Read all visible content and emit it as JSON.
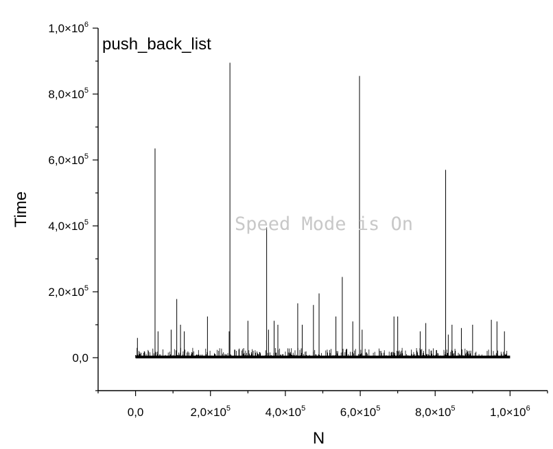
{
  "chart_data": {
    "type": "line",
    "legend": "push_back_list",
    "legend_position": "top-left",
    "xlabel": "N",
    "ylabel": "Time",
    "xlim": [
      -100000,
      1100000
    ],
    "ylim": [
      -100000,
      1000000
    ],
    "grid": false,
    "x_ticks": [
      {
        "value": 0,
        "mant": "0,0",
        "exp": ""
      },
      {
        "value": 200000,
        "mant": "2,0×10",
        "exp": "5"
      },
      {
        "value": 400000,
        "mant": "4,0×10",
        "exp": "5"
      },
      {
        "value": 600000,
        "mant": "6,0×10",
        "exp": "5"
      },
      {
        "value": 800000,
        "mant": "8,0×10",
        "exp": "5"
      },
      {
        "value": 1000000,
        "mant": "1,0×10",
        "exp": "6"
      }
    ],
    "y_ticks": [
      {
        "value": 0,
        "mant": "0,0",
        "exp": ""
      },
      {
        "value": 200000,
        "mant": "2,0×10",
        "exp": "5"
      },
      {
        "value": 400000,
        "mant": "4,0×10",
        "exp": "5"
      },
      {
        "value": 600000,
        "mant": "6,0×10",
        "exp": "5"
      },
      {
        "value": 800000,
        "mant": "8,0×10",
        "exp": "5"
      },
      {
        "value": 1000000,
        "mant": "1,0×10",
        "exp": "6"
      }
    ],
    "baseline": {
      "x_start": 0,
      "x_end": 1000000,
      "noise_level": 30000
    },
    "peaks": [
      {
        "x": 5000,
        "y": 60000
      },
      {
        "x": 52000,
        "y": 635000
      },
      {
        "x": 60000,
        "y": 80000
      },
      {
        "x": 95000,
        "y": 85000
      },
      {
        "x": 110000,
        "y": 178000
      },
      {
        "x": 120000,
        "y": 100000
      },
      {
        "x": 130000,
        "y": 80000
      },
      {
        "x": 192000,
        "y": 125000
      },
      {
        "x": 250000,
        "y": 80000
      },
      {
        "x": 252000,
        "y": 895000
      },
      {
        "x": 300000,
        "y": 112000
      },
      {
        "x": 350000,
        "y": 395000
      },
      {
        "x": 355000,
        "y": 85000
      },
      {
        "x": 370000,
        "y": 112000
      },
      {
        "x": 380000,
        "y": 100000
      },
      {
        "x": 433000,
        "y": 165000
      },
      {
        "x": 445000,
        "y": 100000
      },
      {
        "x": 475000,
        "y": 160000
      },
      {
        "x": 490000,
        "y": 195000
      },
      {
        "x": 535000,
        "y": 125000
      },
      {
        "x": 552000,
        "y": 245000
      },
      {
        "x": 580000,
        "y": 110000
      },
      {
        "x": 598000,
        "y": 855000
      },
      {
        "x": 605000,
        "y": 85000
      },
      {
        "x": 690000,
        "y": 125000
      },
      {
        "x": 700000,
        "y": 125000
      },
      {
        "x": 760000,
        "y": 80000
      },
      {
        "x": 775000,
        "y": 105000
      },
      {
        "x": 828000,
        "y": 570000
      },
      {
        "x": 835000,
        "y": 70000
      },
      {
        "x": 845000,
        "y": 100000
      },
      {
        "x": 870000,
        "y": 90000
      },
      {
        "x": 900000,
        "y": 100000
      },
      {
        "x": 950000,
        "y": 115000
      },
      {
        "x": 965000,
        "y": 110000
      },
      {
        "x": 985000,
        "y": 80000
      }
    ]
  },
  "watermark": "Speed Mode is On"
}
